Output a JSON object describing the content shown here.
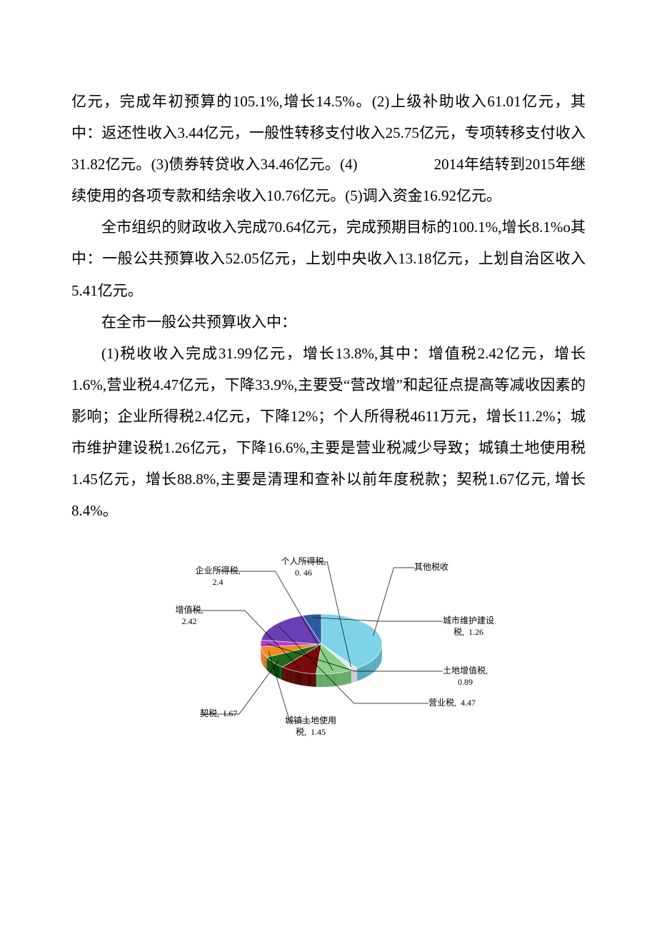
{
  "paragraphs": {
    "p1": "亿元，完成年初预算的105.1%,增长14.5%。(2)上级补助收入61.01亿元，其中：返还性收入3.44亿元，一般性转移支付收入25.75亿元，专项转移支付收入31.82亿元。(3)债券转贷收入34.46亿元。(4)　　　　　2014年结转到2015年继续使用的各项专款和结余收入10.76亿元。(5)调入资金16.92亿元。",
    "p2": "全市组织的财政收入完成70.64亿元，完成预期目标的100.1%,增长8.1%o其中：一般公共预算收入52.05亿元，上划中央收入13.18亿元，上划自治区收入5.41亿元。",
    "p3": "在全市一般公共预算收入中：",
    "p4": "(1)税收收入完成31.99亿元，增长13.8%,其中：增值税2.42亿元，增长1.6%,营业税4.47亿元，下降33.9%,主要受“营改增”和起征点提高等减收因素的影响；企业所得税2.4亿元，下降12%；个人所得税4611万元，增长11.2%；城市维护建设税1.26亿元，下降16.6%,主要是营业税减少导致；城镇土地使用税1.45亿元，增长88.8%,主要是清理和查补以前年度税款；契税1.67亿元, 增长8.4%。"
  },
  "chart": {
    "type": "pie3d",
    "background_color": "#ffffff",
    "label_fontsize": 12,
    "label_color": "#000000",
    "side_shade": "#6e6e6e",
    "slices": [
      {
        "name": "其他税收",
        "value": 10.0,
        "color": "#7fd3e8",
        "label": "其他税收"
      },
      {
        "name": "个人所得税",
        "value": 0.46,
        "color": "#e7e7e7",
        "label": "个人所得税,\n0. 46"
      },
      {
        "name": "企业所得税",
        "value": 2.4,
        "color": "#89d089",
        "label": "企业所得税,\n2.4"
      },
      {
        "name": "增值税",
        "value": 2.42,
        "color": "#7b0b0b",
        "label": "增值税,\n2.42"
      },
      {
        "name": "契税",
        "value": 1.67,
        "color": "#1f6a1f",
        "label": "契税,  L67"
      },
      {
        "name": "城镇土地使用税",
        "value": 1.45,
        "color": "#f08c1c",
        "label": "城镇土地使用\n税,  1.45"
      },
      {
        "name": "土地增值税",
        "value": 0.89,
        "color": "#b33fc8",
        "label": "土地增值税,\n0.89"
      },
      {
        "name": "营业税",
        "value": 4.47,
        "color": "#6a3fb3",
        "label": "营业税,  4.47"
      },
      {
        "name": "城市维护建设税",
        "value": 1.26,
        "color": "#2e5aa0",
        "label": "城市维护建设\n税,  1.26"
      }
    ]
  }
}
